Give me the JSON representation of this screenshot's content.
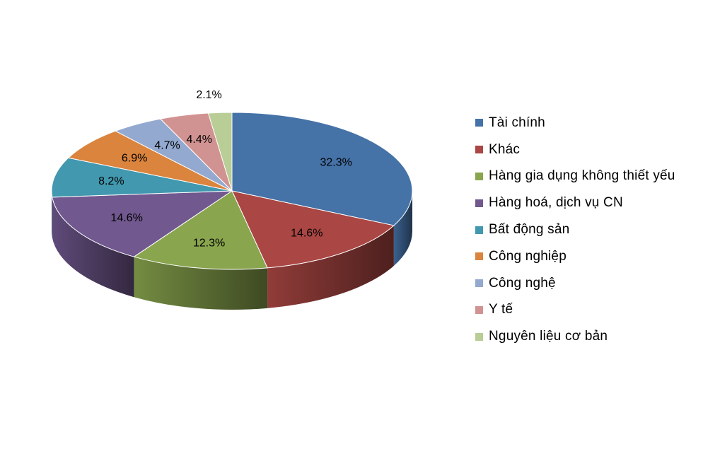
{
  "chart_data": {
    "type": "pie",
    "style": "3d",
    "categories": [
      "Tài chính",
      "Khác",
      "Hàng gia dụng không thiết yếu",
      "Hàng hoá, dịch vụ CN",
      "Bất động sản",
      "Công nghiệp",
      "Công nghệ",
      "Y tế",
      "Nguyên liệu cơ bản"
    ],
    "values": [
      32.3,
      14.6,
      12.3,
      14.6,
      8.2,
      6.9,
      4.7,
      4.4,
      2.1
    ],
    "data_labels": [
      "32.3%",
      "14.6%",
      "12.3%",
      "14.6%",
      "8.2%",
      "6.9%",
      "4.7%",
      "4.4%",
      "2.1%"
    ],
    "colors": [
      "#4572A7",
      "#AA4643",
      "#89A54E",
      "#71588F",
      "#4198AF",
      "#DB843D",
      "#93A9CF",
      "#D19392",
      "#B9CD96"
    ],
    "legend_position": "right"
  }
}
